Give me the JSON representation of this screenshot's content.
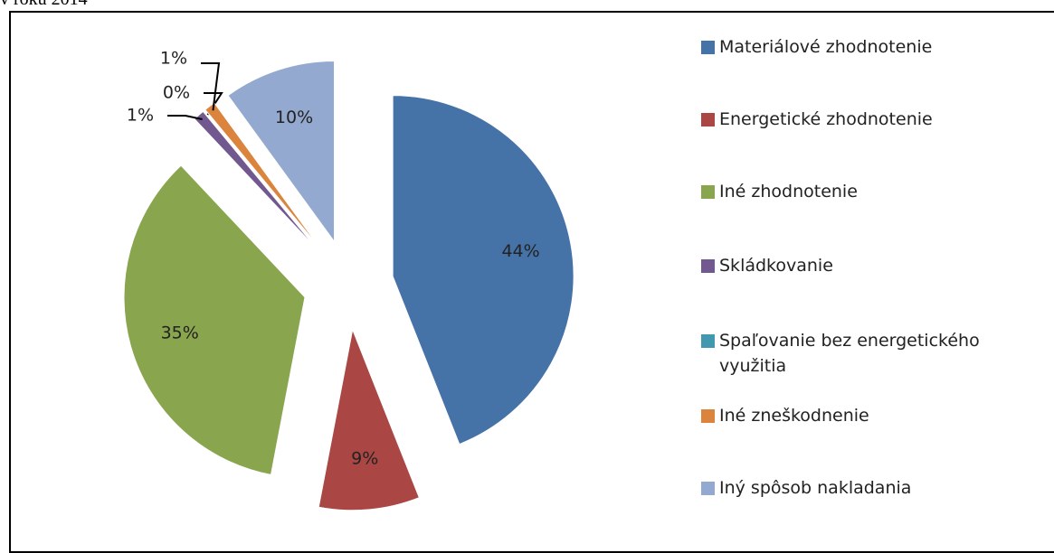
{
  "chart_data": {
    "type": "pie",
    "caption": "v roku 2014",
    "categories": [
      "Materiálové zhodnotenie",
      "Energetické zhodnotenie",
      "Iné zhodnotenie",
      "Skládkovanie",
      "Spaľovanie bez energetického využitia",
      "Iné zneškodnenie",
      "Iný spôsob nakladania"
    ],
    "values": [
      44,
      9,
      35,
      1,
      0,
      1,
      10
    ],
    "value_labels": [
      "44%",
      "9%",
      "35%",
      "1%",
      "0%",
      "1%",
      "10%"
    ],
    "colors": [
      "#4572a7",
      "#aa4643",
      "#89a54e",
      "#71588f",
      "#4198af",
      "#db843d",
      "#93a9cf"
    ],
    "legend": "right"
  }
}
